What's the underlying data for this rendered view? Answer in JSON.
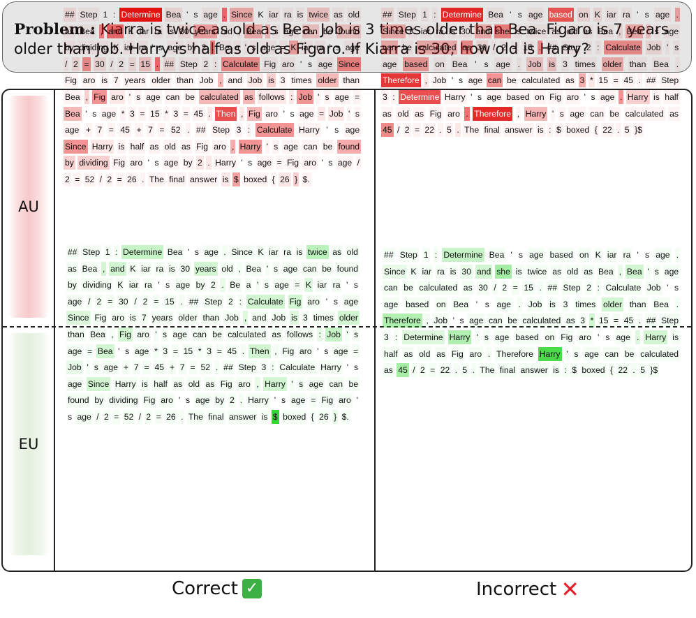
{
  "problem": {
    "label": "Problem :",
    "text": "Kiarra is twice as old as Bea. Job is 3 times older than Bea. Figaro is 7 years older than Job. Harry is half as old as Figaro. If Kiarra is 30, how old is Harry?"
  },
  "rows": {
    "au": "AU",
    "eu": "EU"
  },
  "columns": {
    "correct": "Correct",
    "incorrect": "Incorrect"
  },
  "colors": {
    "au_rgb": "226,18,18",
    "eu_rgb": "30,210,30"
  },
  "icons": {
    "check": "check-mark-icon",
    "cross": "cross-mark-icon"
  },
  "cells": {
    "au_correct": "## 0.1|Step 0.05|1 0|: 0|Determine 1|Bea 0.1|' 0|s 0|age 0.05|. 0.6|Since 0.3|K 0|iar 0.05|ra 0.05|is 0.05|twice 0.2|as 0.05|old 0.05|as 0.05|Bea 0.05|, 0.5|and 0.6|K 0.05|iar 0.05|ra 0.05|is 0.05|30 0.1|years 0.35|old 0.05|, 0.05|Bea 0.3|' 0.25|s 0.05|age 0.05|can 0.2|be 0.05|found 0.2|by 0.05|dividing 0.05|K 0.05|iar 0.05|ra 0.05|' 0|s 0|age 0.05|by 0.05|2 0.05|. 0.5|Be 0.05|a 0.05|' 0.05|s 0.05|age 0.05|= 0.05|K 0.35|iar 0.05|ra 0.05|' 0|s 0|age 0.05|/ 0.05|2 0.1|= 0.45|30 0.1|/ 0.05|2 0.05|= 0.1|15 0.2|. 0.6|## 0.1|Step 0.05|2 0.05|: 0.05|Calculate 0.45|Fig 0.05|aro 0.05|' 0|s 0|age 0.05|Since 0.5|Fig 0.05|aro 0.05|is 0.05|7 0.05|years 0.05|older 0.05|than 0.05|Job 0.05|, 0.3|and 0.05|Job 0.1|is 0.2|3 0.05|times 0.05|older 0.3|than 0.05|Bea 0.05|, 0.2|Fig 0.45|aro 0.1|' 0.05|s 0.05|age 0.05|can 0.05|be 0.05|calculated 0.3|as 0.3|follows 0.1|: 0.1|Job 0.45|' 0.05|s 0.05|age 0.05|= 0.05|Bea 0.3|' 0|s 0|age 0.05|* 0.05|3 0.05|= 0.05|15 0.05|* 0.05|3 0.05|= 0.05|45 0.05|. 0.1|Then 0.75|, 0.1|Fig 0.3|aro 0.05|' 0|s 0|age 0.05|= 0.1|Job 0.1|' 0.05|s 0.05|age 0.05|+ 0.05|7 0.05|= 0.05|45 0.05|+ 0.05|7 0.05|= 0.05|52 0.05|. 0.05|## 0.05|Step 0.05|3 0.05|: 0.05|Calculate 0.45|Harry 0.05|' 0|s 0|age 0.05|Since 0.45|Harry 0.1|is 0.05|half 0.05|as 0.05|old 0.05|as 0.05|Fig 0.05|aro 0.05|, 0.35|Harry 0.45|' 0.05|s 0.05|age 0.05|can 0.05|be 0.05|found 0.35|by 0.2|dividing 0.2|Fig 0.05|aro 0.05|' 0|s 0|age 0.05|by 0.05|2 0.1|. 0.1|Harry 0.05|' 0|s 0|age 0.05|= 0.05|Fig 0.05|aro 0.05|' 0|s 0|age 0.05|/ 0.05|2 0.05|= 0.05|52 0.05|/ 0.05|2 0.05|= 0.05|26 0.05|. 0.05|The 0.05|final 0.05|answer 0.05|is 0.1|$ 0.4|boxed 0.05|{ 0.05|26 0.1|} 0.2|$. 0.05",
    "au_incorrect": "## 0.1|Step 0.05|1 0.05|: 0.05|Determine 0.9|Bea 0.05|' 0|s 0|age 0.05|based 0.7|on 0.1|K 0.1|iar 0.05|ra 0.05|' 0|s 0|age 0.05|. 0.35|Since 0.3|K 0.05|iar 0.05|ra 0.05|is 0.05|30 0.05|and 0.3|she 0.5|is 0.05|twice 0.05|as 0.05|old 0.05|as 0.05|Bea 0.05|, 0.1|Bea 0.3|' 0.2|s 0.05|age 0.05|can 0.3|be 0.05|calculated 0.3|as 0.45|30 0.1|/ 0.05|2 0.05|= 0.05|15 0.05|. 0.45|## 0.05|Step 0.05|2 0.05|: 0.05|Calculate 0.45|Job 0.1|' 0.05|s 0.05|age 0.05|based 0.4|on 0.05|Bea 0.05|' 0|s 0|age 0.05|. 0.05|Job 0.2|is 0.2|3 0.05|times 0.05|older 0.3|than 0.05|Bea 0.05|. 0.05|Therefore 0.85|, 0.1|Job 0.05|' 0|s 0|age 0.05|can 0.45|be 0.05|calculated 0.05|as 0.05|3 0.35|* 0.1|15 0.05|= 0.05|45 0.05|. 0.05|## 0.05|Step 0.05|3 0.05|: 0.05|Determine 0.75|Harry 0.05|' 0|s 0|age 0.05|based 0.05|on 0.05|Fig 0.05|aro 0.05|' 0|s 0|age 0.05|. 0.45|Harry 0.2|is 0.05|half 0.05|as 0.05|old 0.05|as 0.05|Fig 0.05|aro 0.05|. 0.6|Therefore 0.9|, 0.05|Harry 0.3|' 0.05|s 0.05|age 0.05|can 0.05|be 0.05|calculated 0.05|as 0.05|45 0.5|/ 0.05|2 0.05|= 0.05|22 0.05|. 0.05|5 0.05|. 0.1|The 0.05|final 0.05|answer 0.05|is 0.05|: 0.05|$ 0.05|boxed 0.05|{ 0.05|22 0.05|. 0.05|5 0.05|}$ 0.05",
    "eu_correct": "## 0.05|Step 0.05|1 0.05|: 0.05|Determine 0.25|Bea 0.05|' 0|s 0|age 0.05|. 0.05|Since 0.05|K 0.05|iar 0.05|ra 0.05|is 0.05|twice 0.3|as 0.05|old 0.05|as 0.05|Bea 0.05|, 0.2|and 0.2|K 0.05|iar 0.05|ra 0.05|is 0.05|30 0.05|years 0.2|old 0.05|, 0.05|Bea 0.05|' 0.05|s 0.05|age 0.05|can 0.05|be 0.05|found 0.05|by 0.05|dividing 0.05|K 0.05|iar 0.05|ra 0.05|' 0|s 0|age 0.05|by 0.05|2 0.05|. 0.1|Be 0.05|a 0.05|' 0.05|s 0.05|age 0.05|= 0.05|K 0.15|iar 0.05|ra 0.05|' 0|s 0|age 0.05|/ 0.05|2 0.05|= 0.05|30 0.05|/ 0.05|2 0.05|= 0.05|15 0.05|. 0.05|## 0.05|Step 0.05|2 0.05|: 0.05|Calculate 0.2|Fig 0.2|aro 0.05|' 0|s 0|age 0.05|Since 0.15|Fig 0.05|aro 0.05|is 0.05|7 0.05|years 0.05|older 0.05|than 0.05|Job 0.05|, 0.15|and 0.05|Job 0.05|is 0.15|3 0.05|times 0.05|older 0.2|than 0.05|Bea 0.05|, 0.05|Fig 0.2|aro 0.05|' 0.05|s 0.05|age 0.05|can 0.05|be 0.05|calculated 0.05|as 0.05|follows 0.05|: 0.1|Job 0.25|' 0.05|s 0.05|age 0.05|= 0.05|Bea 0.2|' 0|s 0|age 0.05|* 0.05|3 0.05|= 0.05|15 0.05|* 0.05|3 0.05|= 0.05|45 0.05|. 0.05|Then 0.2|, 0.05|Fig 0.05|aro 0.05|' 0|s 0|age 0.05|= 0.05|Job 0.1|' 0.05|s 0.05|age 0.05|+ 0.05|7 0.05|= 0.05|45 0.05|+ 0.05|7 0.05|= 0.05|52 0.05|. 0.05|## 0.05|Step 0.05|3 0.05|: 0.05|Calculate 0.05|Harry 0.05|' 0|s 0|age 0.05|Since 0.2|Harry 0.05|is 0.05|half 0.05|as 0.05|old 0.05|as 0.05|Fig 0.05|aro 0.05|, 0.1|Harry 0.2|' 0.05|s 0.05|age 0.05|can 0.05|be 0.05|found 0.05|by 0.05|dividing 0.05|Fig 0.05|aro 0.05|' 0|s 0|age 0.05|by 0.05|2 0.05|. 0.05|Harry 0.05|' 0|s 0|age 0.05|= 0.05|Fig 0.05|aro 0.05|' 0|s 0|age 0.05|/ 0.05|2 0.05|= 0.05|52 0.05|/ 0.05|2 0.05|= 0.05|26 0.05|. 0.05|The 0.05|final 0.05|answer 0.05|is 0.05|$ 0.9|boxed 0.05|{ 0.05|26 0.05|} 0.1|$. 0.05",
    "eu_incorrect": "## 0.05|Step 0.05|1 0.05|: 0.05|Determine 0.25|Bea 0.05|' 0|s 0|age 0.05|based 0.05|on 0.05|K 0.05|iar 0.05|ra 0.05|' 0|s 0|age 0.05|. 0.05|Since 0.1|K 0.05|iar 0.05|ra 0.05|is 0.05|30 0.1|and 0.2|she 0.4|is 0.05|twice 0.05|as 0.05|old 0.05|as 0.05|Bea 0.05|, 0.1|Bea 0.2|' 0.05|s 0.05|age 0.05|can 0.05|be 0.05|calculated 0.05|as 0.05|30 0.05|/ 0.05|2 0.05|= 0.05|15 0.05|. 0.05|## 0.05|Step 0.05|2 0.05|: 0.05|Calculate 0.05|Job 0.05|' 0|s 0|age 0.05|based 0.05|on 0.05|Bea 0.05|' 0|s 0|age 0.05|. 0.05|Job 0.05|is 0.05|3 0.05|times 0.05|older 0.2|than 0.05|Bea 0.05|. 0.05|Therefore 0.35|, 0.05|Job 0.05|' 0|s 0|age 0.05|can 0.05|be 0.05|calculated 0.05|as 0.05|3 0.05|* 0.2|15 0.05|= 0.05|45 0.05|. 0.05|## 0.05|Step 0.05|3 0.05|: 0.05|Determine 0.15|Harry 0.35|' 0.05|s 0.05|age 0.05|based 0.05|on 0.05|Fig 0.05|aro 0.05|' 0|s 0|age 0.05|. 0.15|Harry 0.2|is 0.05|half 0.05|as 0.05|old 0.05|as 0.05|Fig 0.05|aro 0.05|. 0.05|Therefore 0.05|Harry 0.8|' 0.05|s 0.05|age 0.05|can 0.05|be 0.05|calculated 0.05|as 0.05|45 0.4|/ 0.05|2 0.05|= 0.05|22 0.05|. 0.05|5 0.05|. 0.05|The 0.05|final 0.05|answer 0.05|is 0.05|: 0.05|$ 0.05|boxed 0.05|{ 0.05|22 0.05|. 0.05|5 0.05|}$ 0.05"
  }
}
